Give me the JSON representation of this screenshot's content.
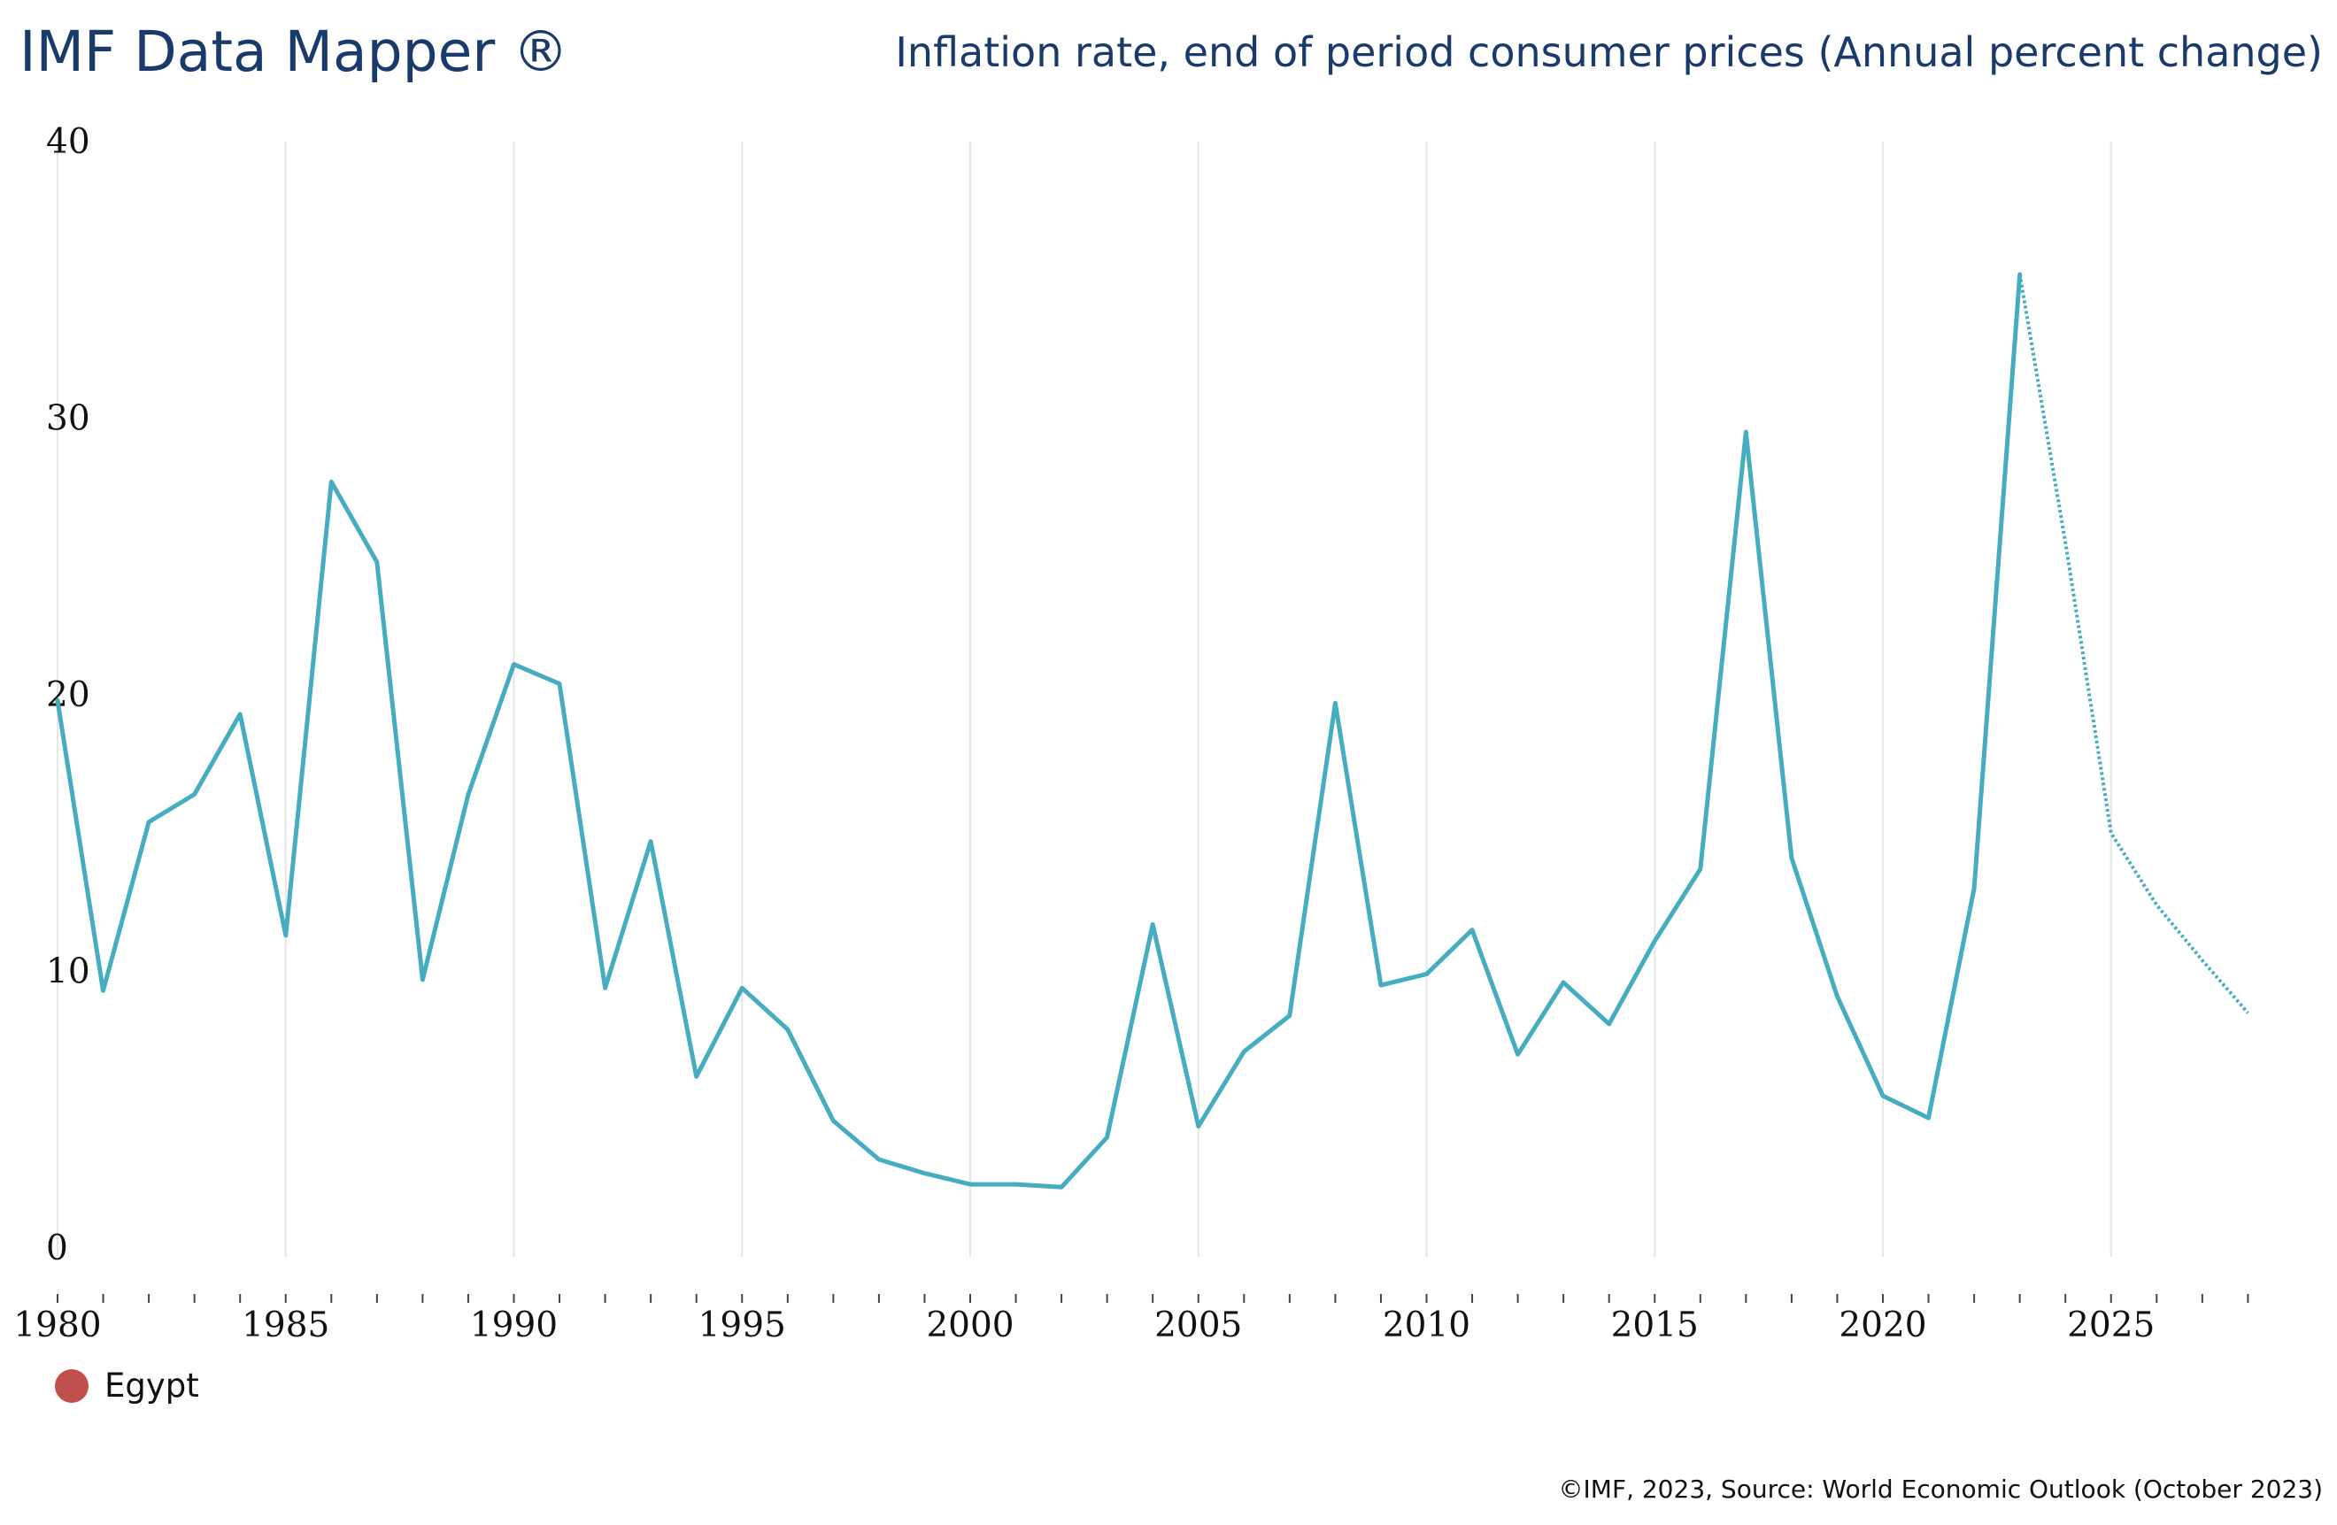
{
  "header": {
    "brand": "IMF Data Mapper ®",
    "subtitle": "Inflation rate, end of period consumer prices (Annual percent change)"
  },
  "footer": {
    "credit": "©IMF, 2023, Source: World Economic Outlook (October 2023)"
  },
  "colors": {
    "line": "#45adbf",
    "grid": "#e6e6e6",
    "legend_marker": "#c0504d",
    "title_text": "#1a3a6b"
  },
  "chart_data": {
    "type": "line",
    "title": "Inflation rate, end of period consumer prices (Annual percent change)",
    "xlabel": "",
    "ylabel": "",
    "xlim": [
      1980,
      2028
    ],
    "ylim": [
      0,
      40
    ],
    "x_ticks": [
      1980,
      1985,
      1990,
      1995,
      2000,
      2005,
      2010,
      2015,
      2020,
      2025
    ],
    "y_ticks": [
      0,
      10,
      20,
      30,
      40
    ],
    "grid": "vertical",
    "legend": {
      "position": "bottom-left",
      "entries": [
        "Egypt"
      ]
    },
    "series": [
      {
        "name": "Egypt",
        "x": [
          1980,
          1981,
          1982,
          1983,
          1984,
          1985,
          1986,
          1987,
          1988,
          1989,
          1990,
          1991,
          1992,
          1993,
          1994,
          1995,
          1996,
          1997,
          1998,
          1999,
          2000,
          2001,
          2002,
          2003,
          2004,
          2005,
          2006,
          2007,
          2008,
          2009,
          2010,
          2011,
          2012,
          2013,
          2014,
          2015,
          2016,
          2017,
          2018,
          2019,
          2020,
          2021,
          2022,
          2023,
          2024,
          2025,
          2026,
          2027,
          2028
        ],
        "values": [
          19.8,
          9.3,
          15.4,
          16.4,
          19.3,
          11.3,
          27.7,
          24.8,
          9.7,
          16.4,
          21.1,
          20.4,
          9.4,
          14.7,
          6.2,
          9.4,
          7.9,
          4.6,
          3.2,
          2.7,
          2.3,
          2.3,
          2.2,
          4.0,
          11.7,
          4.4,
          7.1,
          8.4,
          19.7,
          9.5,
          9.9,
          11.5,
          7.0,
          9.6,
          8.1,
          11.1,
          13.7,
          29.5,
          14.1,
          9.1,
          5.5,
          4.7,
          13.0,
          35.2,
          25.5,
          15.0,
          12.4,
          10.4,
          8.5
        ],
        "estimate_start_year": 2023
      }
    ]
  },
  "legend_items": [
    {
      "label": "Egypt",
      "color": "#c0504d"
    }
  ]
}
